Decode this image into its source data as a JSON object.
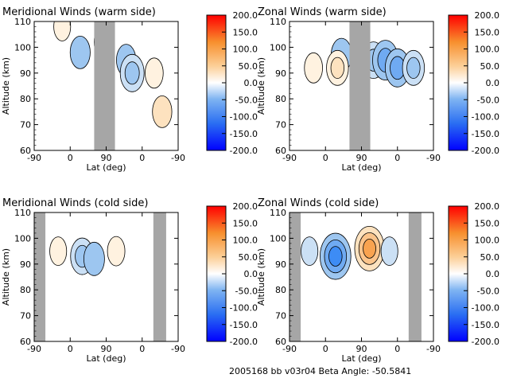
{
  "footer": "2005168 bb v03r04   Beta Angle: -50.5841",
  "colors": {
    "negative_scale": [
      "#0000ff",
      "#1f5cf5",
      "#3d8cf5",
      "#6faaf2",
      "#9dc6f0",
      "#cbe0f5"
    ],
    "positive_scale": [
      "#fff2e0",
      "#fde2bf",
      "#fbc48b",
      "#f9a350",
      "#f57a1e",
      "#ff0000"
    ],
    "gap_gray": "#a6a6a6",
    "contour_line": "#000000"
  },
  "chart_data": [
    {
      "type": "heatmap",
      "title": "Meridional Winds (warm side)",
      "xlabel": "Lat (deg)",
      "ylabel": "Altitude (km)",
      "xticks": [
        "-90",
        "0",
        "90",
        "0",
        "-90"
      ],
      "yticks": [
        "60",
        "70",
        "80",
        "90",
        "100",
        "110"
      ],
      "ylim": [
        60,
        110
      ],
      "colorbar": {
        "min": -200,
        "max": 200,
        "labels": [
          "200.0",
          "150.0",
          "100.0",
          "50.0",
          "0.0",
          "-50.0",
          "-100.0",
          "-150.0",
          "-200.0"
        ]
      },
      "data_gaps": [
        [
          150,
          202
        ]
      ],
      "features": [
        {
          "x": 115,
          "y": 98,
          "value": -45
        },
        {
          "x": 175,
          "y": 102,
          "value": -45
        },
        {
          "x": 230,
          "y": 95,
          "value": -40
        },
        {
          "x": 245,
          "y": 90,
          "value": -75
        },
        {
          "x": 300,
          "y": 90,
          "value": 30
        },
        {
          "x": 320,
          "y": 75,
          "value": 40
        },
        {
          "x": 70,
          "y": 108,
          "value": 20
        }
      ]
    },
    {
      "type": "heatmap",
      "title": "Zonal Winds (warm side)",
      "xlabel": "Lat (deg)",
      "ylabel": "Altitude (km)",
      "xticks": [
        "-90",
        "0",
        "90",
        "0",
        "-90"
      ],
      "yticks": [
        "60",
        "70",
        "80",
        "90",
        "100",
        "110"
      ],
      "ylim": [
        60,
        110
      ],
      "colorbar": {
        "min": -200,
        "max": 200,
        "labels": [
          "200.0",
          "150.0",
          "100.0",
          "50.0",
          "0.0",
          "-50.0",
          "-100.0",
          "-150.0",
          "-200.0"
        ]
      },
      "data_gaps": [
        [
          150,
          202
        ]
      ],
      "features": [
        {
          "x": 130,
          "y": 97,
          "value": -50
        },
        {
          "x": 210,
          "y": 95,
          "value": -70
        },
        {
          "x": 240,
          "y": 95,
          "value": -90
        },
        {
          "x": 270,
          "y": 92,
          "value": -80
        },
        {
          "x": 310,
          "y": 92,
          "value": -60
        },
        {
          "x": 60,
          "y": 92,
          "value": 30
        },
        {
          "x": 120,
          "y": 92,
          "value": 60
        }
      ]
    },
    {
      "type": "heatmap",
      "title": "Meridional Winds (cold side)",
      "xlabel": "Lat (deg)",
      "ylabel": "Altitude (km)",
      "xticks": [
        "-90",
        "0",
        "90",
        "0",
        "-90"
      ],
      "yticks": [
        "60",
        "70",
        "80",
        "90",
        "100",
        "110"
      ],
      "ylim": [
        60,
        110
      ],
      "colorbar": {
        "min": -200,
        "max": 200,
        "labels": [
          "200.0",
          "150.0",
          "100.0",
          "50.0",
          "0.0",
          "-50.0",
          "-100.0",
          "-150.0",
          "-200.0"
        ]
      },
      "data_gaps": [
        [
          0,
          28
        ],
        [
          298,
          330
        ]
      ],
      "features": [
        {
          "x": 120,
          "y": 93,
          "value": -70
        },
        {
          "x": 150,
          "y": 92,
          "value": -50
        },
        {
          "x": 205,
          "y": 95,
          "value": 25
        },
        {
          "x": 60,
          "y": 95,
          "value": 20
        }
      ]
    },
    {
      "type": "heatmap",
      "title": "Zonal Winds (cold side)",
      "xlabel": "Lat (deg)",
      "ylabel": "Altitude (km)",
      "xticks": [
        "-90",
        "0",
        "90",
        "0",
        "-90"
      ],
      "yticks": [
        "60",
        "70",
        "80",
        "90",
        "100",
        "110"
      ],
      "ylim": [
        60,
        110
      ],
      "colorbar": {
        "min": -200,
        "max": 200,
        "labels": [
          "200.0",
          "150.0",
          "100.0",
          "50.0",
          "0.0",
          "-50.0",
          "-100.0",
          "-150.0",
          "-200.0"
        ]
      },
      "data_gaps": [
        [
          0,
          28
        ],
        [
          298,
          330
        ]
      ],
      "features": [
        {
          "x": 115,
          "y": 93,
          "value": -130
        },
        {
          "x": 200,
          "y": 96,
          "value": 120
        },
        {
          "x": 50,
          "y": 95,
          "value": -20
        },
        {
          "x": 250,
          "y": 95,
          "value": -20
        }
      ]
    }
  ]
}
